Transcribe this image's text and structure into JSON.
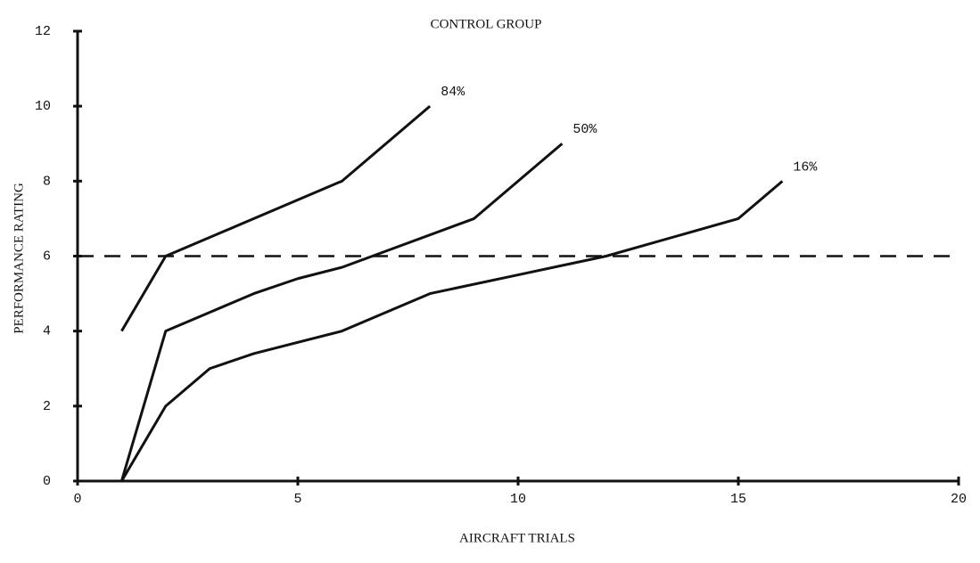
{
  "chart_data": {
    "type": "line",
    "title": "CONTROL GROUP",
    "x_label": "AIRCRAFT TRIALS",
    "y_label": "PERFORMANCE RATING",
    "xlim": [
      0,
      20
    ],
    "ylim": [
      0,
      12
    ],
    "xticks": [
      0,
      5,
      10,
      15,
      20
    ],
    "yticks": [
      0,
      2,
      4,
      6,
      8,
      10,
      12
    ],
    "reference_line": 6,
    "color": "#111111",
    "series": [
      {
        "name": "84%",
        "color": "#111111",
        "x": [
          1,
          2,
          6,
          8
        ],
        "values": [
          4,
          6,
          8,
          10
        ]
      },
      {
        "name": "50%",
        "color": "#111111",
        "x": [
          1,
          2,
          3,
          4,
          5,
          6,
          9,
          11
        ],
        "values": [
          0,
          4,
          4.5,
          5,
          5.4,
          5.7,
          7,
          9
        ]
      },
      {
        "name": "16%",
        "color": "#111111",
        "x": [
          1,
          2,
          3,
          4,
          6,
          8,
          10,
          12,
          15,
          16
        ],
        "values": [
          0,
          2,
          3,
          3.4,
          4,
          5,
          5.5,
          6,
          7,
          8
        ]
      }
    ]
  }
}
